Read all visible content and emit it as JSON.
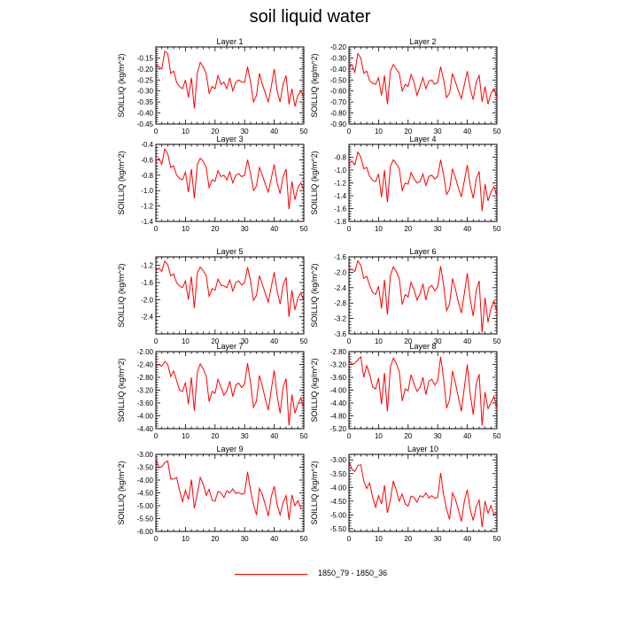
{
  "title": "soil liquid water",
  "legend": {
    "label": "1850_79 - 1850_36",
    "color": "#ff0000"
  },
  "chart_data": [
    {
      "type": "line",
      "title": "Layer 1",
      "ylabel": "SOILLIQ  (kg/m^2)",
      "xlim": [
        0,
        50
      ],
      "ylim": [
        -0.45,
        -0.1
      ],
      "xticks": [
        0,
        10,
        20,
        30,
        40,
        50
      ],
      "yticks": [
        -0.15,
        -0.2,
        -0.25,
        -0.3,
        -0.35,
        -0.4,
        -0.45
      ],
      "ytick_decimals": 2,
      "series": [
        {
          "color": "#ff0000",
          "values": [
            -0.18,
            -0.19,
            -0.2,
            -0.12,
            -0.13,
            -0.22,
            -0.21,
            -0.26,
            -0.28,
            -0.29,
            -0.25,
            -0.33,
            -0.24,
            -0.38,
            -0.22,
            -0.17,
            -0.19,
            -0.22,
            -0.31,
            -0.28,
            -0.29,
            -0.23,
            -0.27,
            -0.26,
            -0.29,
            -0.24,
            -0.3,
            -0.26,
            -0.25,
            -0.26,
            -0.26,
            -0.19,
            -0.26,
            -0.35,
            -0.32,
            -0.22,
            -0.27,
            -0.31,
            -0.35,
            -0.28,
            -0.2,
            -0.3,
            -0.35,
            -0.27,
            -0.23,
            -0.36,
            -0.29,
            -0.37,
            -0.32,
            -0.3,
            -0.33
          ]
        }
      ]
    },
    {
      "type": "line",
      "title": "Layer 2",
      "ylabel": "SOILLIQ  (kg/m^2)",
      "xlim": [
        0,
        50
      ],
      "ylim": [
        -0.9,
        -0.2
      ],
      "xticks": [
        0,
        10,
        20,
        30,
        40,
        50
      ],
      "yticks": [
        -0.2,
        -0.3,
        -0.4,
        -0.5,
        -0.6,
        -0.7,
        -0.8,
        -0.9
      ],
      "ytick_decimals": 2,
      "series": [
        {
          "color": "#ff0000",
          "values": [
            -0.38,
            -0.36,
            -0.43,
            -0.26,
            -0.3,
            -0.44,
            -0.42,
            -0.51,
            -0.53,
            -0.54,
            -0.48,
            -0.64,
            -0.46,
            -0.72,
            -0.42,
            -0.36,
            -0.4,
            -0.44,
            -0.6,
            -0.54,
            -0.56,
            -0.45,
            -0.52,
            -0.64,
            -0.56,
            -0.48,
            -0.58,
            -0.51,
            -0.5,
            -0.54,
            -0.52,
            -0.38,
            -0.5,
            -0.66,
            -0.62,
            -0.44,
            -0.52,
            -0.6,
            -0.67,
            -0.54,
            -0.42,
            -0.58,
            -0.68,
            -0.52,
            -0.46,
            -0.7,
            -0.56,
            -0.72,
            -0.62,
            -0.58,
            -0.66
          ]
        }
      ]
    },
    {
      "type": "line",
      "title": "Layer 3",
      "ylabel": "SOILLIQ  (kg/m^2)",
      "xlim": [
        0,
        50
      ],
      "ylim": [
        -1.4,
        -0.4
      ],
      "xticks": [
        0,
        10,
        20,
        30,
        40,
        50
      ],
      "yticks": [
        -0.4,
        -0.6,
        -0.8,
        -1.0,
        -1.2,
        -1.4
      ],
      "ytick_decimals": 1,
      "series": [
        {
          "color": "#ff0000",
          "values": [
            -0.62,
            -0.58,
            -0.66,
            -0.46,
            -0.52,
            -0.7,
            -0.68,
            -0.8,
            -0.84,
            -0.86,
            -0.76,
            -1.02,
            -0.72,
            -1.1,
            -0.66,
            -0.58,
            -0.62,
            -0.7,
            -0.96,
            -0.86,
            -0.88,
            -0.74,
            -0.82,
            -0.8,
            -0.86,
            -0.76,
            -0.9,
            -0.8,
            -0.78,
            -0.82,
            -0.8,
            -0.6,
            -0.78,
            -1.0,
            -0.94,
            -0.7,
            -0.8,
            -0.92,
            -1.02,
            -0.84,
            -0.66,
            -0.9,
            -1.04,
            -0.82,
            -0.72,
            -1.24,
            -0.88,
            -1.12,
            -0.96,
            -0.9,
            -1.0
          ]
        }
      ]
    },
    {
      "type": "line",
      "title": "Layer 4",
      "ylabel": "SOILLIQ  (kg/m^2)",
      "xlim": [
        0,
        50
      ],
      "ylim": [
        -1.8,
        -0.6
      ],
      "xticks": [
        0,
        10,
        20,
        30,
        40,
        50
      ],
      "yticks": [
        -0.8,
        -1.0,
        -1.2,
        -1.4,
        -1.6,
        -1.8
      ],
      "ytick_decimals": 1,
      "series": [
        {
          "color": "#ff0000",
          "values": [
            -0.9,
            -0.86,
            -0.92,
            -0.72,
            -0.8,
            -0.98,
            -0.96,
            -1.1,
            -1.16,
            -1.18,
            -1.06,
            -1.42,
            -1.0,
            -1.5,
            -0.94,
            -0.84,
            -0.9,
            -0.98,
            -1.32,
            -1.2,
            -1.22,
            -1.04,
            -1.14,
            -1.2,
            -1.18,
            -1.06,
            -1.24,
            -1.1,
            -1.08,
            -1.14,
            -1.1,
            -0.84,
            -1.08,
            -1.38,
            -1.3,
            -0.98,
            -1.12,
            -1.28,
            -1.42,
            -1.16,
            -0.92,
            -1.24,
            -1.44,
            -1.14,
            -1.02,
            -1.64,
            -1.22,
            -1.48,
            -1.34,
            -1.26,
            -1.4
          ]
        }
      ]
    },
    {
      "type": "line",
      "title": "Layer 5",
      "ylabel": "SOILLIQ  (kg/m^2)",
      "xlim": [
        0,
        50
      ],
      "ylim": [
        -2.8,
        -1.0
      ],
      "xticks": [
        0,
        10,
        20,
        30,
        40,
        50
      ],
      "yticks": [
        -1.2,
        -1.6,
        -2.0,
        -2.4
      ],
      "ytick_decimals": 1,
      "series": [
        {
          "color": "#ff0000",
          "values": [
            -1.32,
            -1.26,
            -1.34,
            -1.1,
            -1.18,
            -1.44,
            -1.4,
            -1.6,
            -1.68,
            -1.72,
            -1.56,
            -2.0,
            -1.46,
            -2.2,
            -1.38,
            -1.24,
            -1.32,
            -1.44,
            -1.92,
            -1.74,
            -1.78,
            -1.52,
            -1.66,
            -1.68,
            -1.72,
            -1.54,
            -1.8,
            -1.6,
            -1.56,
            -1.66,
            -1.6,
            -1.24,
            -1.56,
            -2.02,
            -1.9,
            -1.44,
            -1.64,
            -1.86,
            -2.06,
            -1.7,
            -1.36,
            -1.8,
            -2.1,
            -1.66,
            -1.48,
            -2.4,
            -1.78,
            -2.24,
            -1.96,
            -1.84,
            -2.04
          ]
        }
      ]
    },
    {
      "type": "line",
      "title": "Layer 6",
      "ylabel": "SOILLIQ  (kg/m^2)",
      "xlim": [
        0,
        50
      ],
      "ylim": [
        -3.6,
        -1.6
      ],
      "xticks": [
        0,
        10,
        20,
        30,
        40,
        50
      ],
      "yticks": [
        -1.6,
        -2.0,
        -2.4,
        -2.8,
        -3.2,
        -3.6
      ],
      "ytick_decimals": 1,
      "series": [
        {
          "color": "#ff0000",
          "values": [
            -1.96,
            -1.92,
            -1.98,
            -1.7,
            -1.82,
            -2.16,
            -2.1,
            -2.34,
            -2.52,
            -2.58,
            -2.36,
            -2.94,
            -2.2,
            -3.1,
            -2.08,
            -1.86,
            -1.98,
            -2.16,
            -2.84,
            -2.58,
            -2.64,
            -2.26,
            -2.46,
            -2.72,
            -2.56,
            -2.3,
            -2.72,
            -2.4,
            -2.34,
            -2.48,
            -2.38,
            -1.84,
            -2.34,
            -3.0,
            -2.82,
            -2.16,
            -2.44,
            -2.78,
            -3.06,
            -2.54,
            -2.02,
            -2.7,
            -3.14,
            -2.48,
            -2.22,
            -3.56,
            -2.66,
            -3.3,
            -2.94,
            -2.74,
            -3.04
          ]
        }
      ]
    },
    {
      "type": "line",
      "title": "Layer 7",
      "ylabel": "SOILLIQ  (kg/m^2)",
      "xlim": [
        0,
        50
      ],
      "ylim": [
        -4.4,
        -2.0
      ],
      "xticks": [
        0,
        10,
        20,
        30,
        40,
        50
      ],
      "yticks": [
        -2.0,
        -2.4,
        -2.8,
        -3.2,
        -3.6,
        -4.0,
        -4.4
      ],
      "ytick_decimals": 2,
      "series": [
        {
          "color": "#ff0000",
          "values": [
            -2.44,
            -2.4,
            -2.46,
            -2.3,
            -2.4,
            -2.78,
            -2.6,
            -2.9,
            -3.2,
            -3.24,
            -2.96,
            -3.64,
            -2.8,
            -3.84,
            -2.64,
            -2.38,
            -2.54,
            -2.76,
            -3.56,
            -3.24,
            -3.3,
            -2.86,
            -3.1,
            -3.36,
            -3.22,
            -2.92,
            -3.4,
            -3.04,
            -2.98,
            -3.12,
            -3.0,
            -2.36,
            -2.98,
            -3.74,
            -3.54,
            -2.74,
            -3.08,
            -3.48,
            -3.82,
            -3.18,
            -2.58,
            -3.38,
            -3.92,
            -3.12,
            -2.84,
            -4.3,
            -3.34,
            -3.92,
            -3.64,
            -3.44,
            -3.76
          ]
        }
      ]
    },
    {
      "type": "line",
      "title": "Layer 8",
      "ylabel": "SOILLIQ  (kg/m^2)",
      "xlim": [
        0,
        50
      ],
      "ylim": [
        -5.2,
        -2.8
      ],
      "xticks": [
        0,
        10,
        20,
        30,
        40,
        50
      ],
      "yticks": [
        -2.8,
        -3.2,
        -3.6,
        -4.0,
        -4.4,
        -4.8,
        -5.2
      ],
      "ytick_decimals": 2,
      "series": [
        {
          "color": "#ff0000",
          "values": [
            -3.06,
            -3.2,
            -3.16,
            -3.06,
            -2.96,
            -3.6,
            -3.24,
            -3.5,
            -3.9,
            -3.96,
            -3.62,
            -4.44,
            -3.46,
            -4.66,
            -3.28,
            -3.0,
            -3.16,
            -3.42,
            -4.34,
            -3.96,
            -4.02,
            -3.52,
            -3.8,
            -4.04,
            -3.92,
            -3.6,
            -4.14,
            -3.72,
            -3.66,
            -3.84,
            -3.7,
            -2.96,
            -3.66,
            -4.56,
            -4.3,
            -3.4,
            -3.78,
            -4.24,
            -4.66,
            -3.9,
            -3.2,
            -4.12,
            -4.76,
            -3.82,
            -3.5,
            -5.1,
            -4.06,
            -4.58,
            -4.4,
            -4.2,
            -4.58
          ]
        }
      ]
    },
    {
      "type": "line",
      "title": "Layer 9",
      "ylabel": "SOILLIQ  (kg/m^2)",
      "xlim": [
        0,
        50
      ],
      "ylim": [
        -6.0,
        -3.0
      ],
      "xticks": [
        0,
        10,
        20,
        30,
        40,
        50
      ],
      "yticks": [
        -3.0,
        -3.5,
        -4.0,
        -4.5,
        -5.0,
        -5.5,
        -6.0
      ],
      "ytick_decimals": 2,
      "series": [
        {
          "color": "#ff0000",
          "values": [
            -3.18,
            -3.52,
            -3.48,
            -3.32,
            -3.26,
            -3.96,
            -3.96,
            -3.9,
            -4.4,
            -4.84,
            -4.4,
            -4.76,
            -3.98,
            -5.1,
            -4.52,
            -3.9,
            -4.16,
            -4.6,
            -4.36,
            -4.78,
            -4.82,
            -4.44,
            -4.5,
            -4.68,
            -4.42,
            -4.5,
            -4.34,
            -4.52,
            -4.48,
            -4.56,
            -4.5,
            -3.68,
            -4.4,
            -4.96,
            -5.36,
            -4.32,
            -4.56,
            -4.98,
            -5.4,
            -4.64,
            -4.24,
            -4.96,
            -5.36,
            -4.88,
            -4.6,
            -5.54,
            -4.58,
            -5.0,
            -4.8,
            -5.12,
            -5.08
          ]
        }
      ]
    },
    {
      "type": "line",
      "title": "Layer 10",
      "ylabel": "SOILLIQ  (kg/m^2)",
      "xlim": [
        0,
        50
      ],
      "ylim": [
        -5.6,
        -2.8
      ],
      "xticks": [
        0,
        10,
        20,
        30,
        40,
        50
      ],
      "yticks": [
        -3.0,
        -3.5,
        -4.0,
        -4.5,
        -5.0,
        -5.5
      ],
      "ytick_decimals": 2,
      "series": [
        {
          "color": "#ff0000",
          "values": [
            -3.04,
            -3.34,
            -3.42,
            -3.2,
            -3.18,
            -3.76,
            -4.04,
            -3.84,
            -4.36,
            -4.72,
            -4.3,
            -4.6,
            -3.92,
            -4.92,
            -4.44,
            -3.76,
            -4.1,
            -4.5,
            -4.24,
            -4.6,
            -4.68,
            -4.32,
            -4.36,
            -4.54,
            -4.3,
            -4.36,
            -4.2,
            -4.38,
            -4.3,
            -4.4,
            -4.36,
            -3.48,
            -4.28,
            -4.8,
            -5.16,
            -4.2,
            -4.44,
            -4.82,
            -5.24,
            -4.5,
            -4.08,
            -4.82,
            -5.2,
            -4.7,
            -4.46,
            -5.44,
            -4.5,
            -4.94,
            -4.66,
            -4.98,
            -4.94
          ]
        }
      ]
    }
  ]
}
